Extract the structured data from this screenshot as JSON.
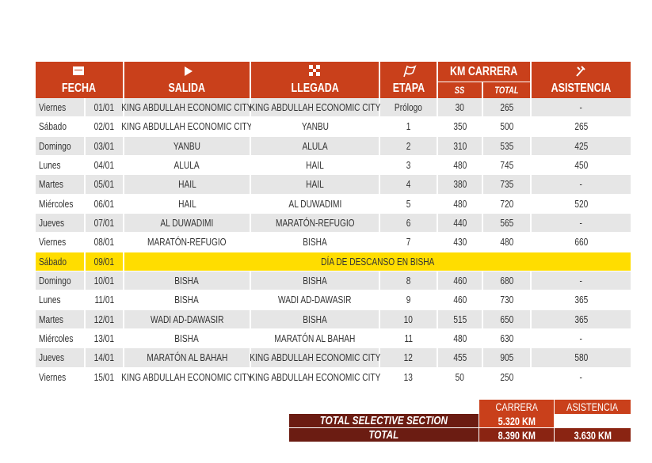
{
  "header": {
    "fecha": "FECHA",
    "salida": "SALIDA",
    "llegada": "LLEGADA",
    "etapa": "ETAPA",
    "km_carrera": "KM CARRERA",
    "ss": "SS",
    "total": "TOTAL",
    "asistencia": "ASISTENCIA"
  },
  "table": {
    "rows": [
      [
        "Viernes",
        "01/01",
        "KING ABDULLAH ECONOMIC CITY",
        "KING ABDULLAH ECONOMIC CITY",
        "Prólogo",
        30,
        265,
        "-"
      ],
      [
        "Sábado",
        "02/01",
        "KING ABDULLAH ECONOMIC CITY",
        "YANBU",
        1,
        350,
        500,
        265
      ],
      [
        "Domingo",
        "03/01",
        "YANBU",
        "ALULA",
        2,
        310,
        535,
        425
      ],
      [
        "Lunes",
        "04/01",
        "ALULA",
        "HAIL",
        3,
        480,
        745,
        450
      ],
      [
        "Martes",
        "05/01",
        "HAIL",
        "HAIL",
        4,
        380,
        735,
        "-"
      ],
      [
        "Miércoles",
        "06/01",
        "HAIL",
        "AL DUWADIMI",
        5,
        480,
        720,
        520
      ],
      [
        "Jueves",
        "07/01",
        "AL DUWADIMI",
        "MARATÓN-REFUGIO",
        6,
        440,
        565,
        "-"
      ],
      [
        "Viernes",
        "08/01",
        "MARATÓN-REFUGIO",
        "BISHA",
        7,
        430,
        480,
        660
      ],
      [
        "Sábado",
        "09/01",
        "DÍA DE DESCANSO EN BISHA"
      ],
      [
        "Domingo",
        "10/01",
        "BISHA",
        "BISHA",
        8,
        460,
        680,
        "-"
      ],
      [
        "Lunes",
        "11/01",
        "BISHA",
        "WADI AD-DAWASIR",
        9,
        460,
        730,
        365
      ],
      [
        "Martes",
        "12/01",
        "WADI AD-DAWASIR",
        "BISHA",
        10,
        515,
        650,
        365
      ],
      [
        "Miércoles",
        "13/01",
        "BISHA",
        "MARATÓN AL BAHAH",
        11,
        480,
        630,
        "-"
      ],
      [
        "Jueves",
        "14/01",
        "MARATÓN AL BAHAH",
        "KING ABDULLAH ECONOMIC CITY",
        12,
        455,
        905,
        580
      ],
      [
        "Viernes",
        "15/01",
        "KING ABDULLAH ECONOMIC CITY",
        "KING ABDULLAH ECONOMIC CITY",
        13,
        50,
        250,
        "-"
      ]
    ]
  },
  "summary": {
    "columns": [
      "CARRERA",
      "ASISTENCIA"
    ],
    "rows": [
      {
        "label": "TOTAL SELECTIVE SECTION",
        "values": [
          "5.320 KM"
        ]
      },
      {
        "label": "TOTAL",
        "values": [
          "8.390 KM",
          "3.630 KM"
        ]
      }
    ]
  }
}
